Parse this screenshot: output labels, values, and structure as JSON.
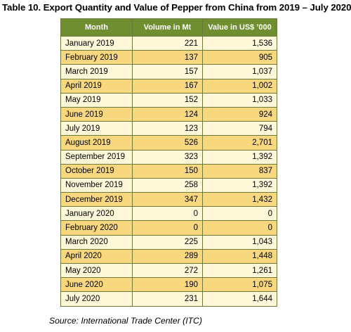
{
  "title": "Table 10. Export Quantity and Value of Pepper from China from 2019 – July 2020",
  "table": {
    "headers": [
      "Month",
      "Volume in Mt",
      "Value in US$ ’000"
    ],
    "rows": [
      {
        "month": "January 2019",
        "volume": "221",
        "value": "1,536"
      },
      {
        "month": "February 2019",
        "volume": "137",
        "value": "905"
      },
      {
        "month": "March 2019",
        "volume": "157",
        "value": "1,037"
      },
      {
        "month": "April  2019",
        "volume": "167",
        "value": "1,002"
      },
      {
        "month": "May 2019",
        "volume": "152",
        "value": "1,033"
      },
      {
        "month": "June 2019",
        "volume": "124",
        "value": "924"
      },
      {
        "month": "July 2019",
        "volume": "123",
        "value": "794"
      },
      {
        "month": "August 2019",
        "volume": "526",
        "value": "2,701"
      },
      {
        "month": "September 2019",
        "volume": "323",
        "value": "1,392"
      },
      {
        "month": "October 2019",
        "volume": "150",
        "value": "837"
      },
      {
        "month": "November 2019",
        "volume": "258",
        "value": "1,392"
      },
      {
        "month": "December 2019",
        "volume": "347",
        "value": "1,432"
      },
      {
        "month": "January 2020",
        "volume": "0",
        "value": "0"
      },
      {
        "month": "February 2020",
        "volume": "0",
        "value": "0"
      },
      {
        "month": "March 2020",
        "volume": "225",
        "value": "1,043"
      },
      {
        "month": "April  2020",
        "volume": "289",
        "value": "1,448"
      },
      {
        "month": "May 2020",
        "volume": "272",
        "value": "1,261"
      },
      {
        "month": "June 2020",
        "volume": "190",
        "value": "1,075"
      },
      {
        "month": "July 2020",
        "volume": "231",
        "value": "1,644"
      }
    ]
  },
  "source": "Source: International Trade Center (ITC)",
  "colors": {
    "header_bg": "#6f8e2f",
    "row_light": "#fff8d8",
    "row_dark": "#f8d77e",
    "border": "#6b7a3a"
  }
}
